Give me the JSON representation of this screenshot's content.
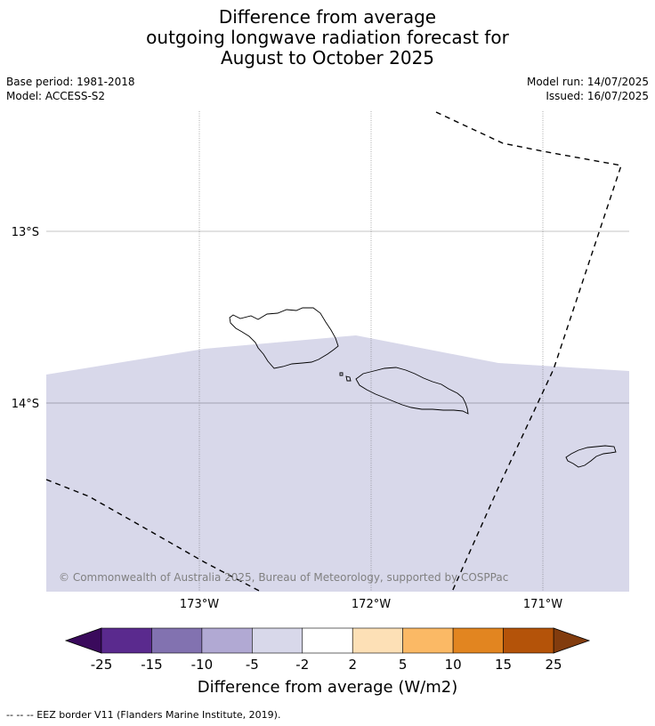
{
  "title": {
    "line1": "Difference from average",
    "line2": "outgoing longwave radiation forecast for",
    "line3": "August to October 2025"
  },
  "meta": {
    "base_period": "Base period: 1981-2018",
    "model": "Model: ACCESS-S2",
    "model_run": "Model run: 14/07/2025",
    "issued": "Issued: 16/07/2025"
  },
  "map": {
    "lat_labels": [
      "13°S",
      "14°S"
    ],
    "lon_labels": [
      "173°W",
      "172°W",
      "171°W"
    ],
    "copyright": "© Commonwealth of Australia 2025, Bureau of Meteorology, supported by COSPPac",
    "fill_color": "#d8d8ea"
  },
  "colorbar": {
    "ticks": [
      "-25",
      "-15",
      "-10",
      "-5",
      "-2",
      "2",
      "5",
      "10",
      "15",
      "25"
    ],
    "colors": [
      "#5a2a8e",
      "#8272b0",
      "#b1a9d3",
      "#d8d8ea",
      "#ffffff",
      "#fde0b6",
      "#fbb965",
      "#e28520",
      "#b45309"
    ],
    "low_extend_color": "#3a0a5c",
    "high_extend_color": "#823c0e",
    "label": "Difference from average (W/m2)"
  },
  "legend": {
    "eez": "--  --  -- EEZ border V11 (Flanders Marine Institute, 2019)."
  }
}
